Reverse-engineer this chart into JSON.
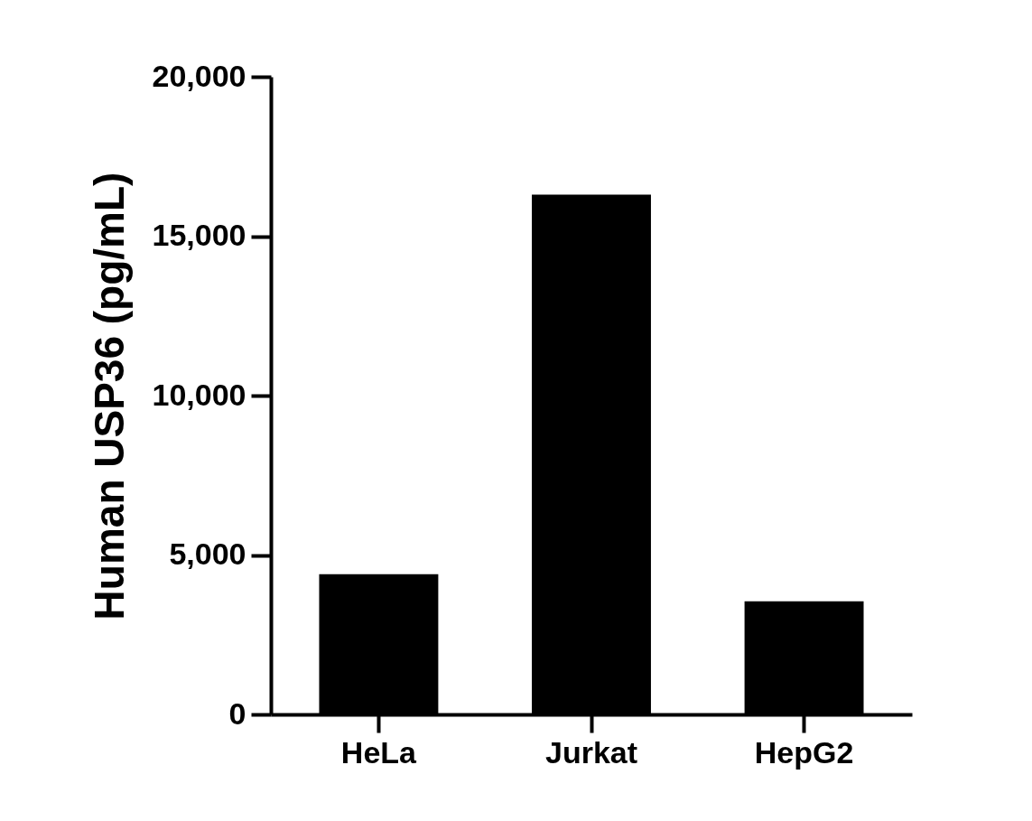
{
  "chart_data": {
    "type": "bar",
    "ylabel": "Human USP36 (pg/mL)",
    "categories": [
      "HeLa",
      "Jurkat",
      "HepG2"
    ],
    "values": [
      4400,
      16300,
      3550
    ],
    "color": "#000000",
    "ylim": [
      0,
      20000
    ],
    "yticks": [
      {
        "value": 0,
        "label": "0"
      },
      {
        "value": 5000,
        "label": "5,000"
      },
      {
        "value": 10000,
        "label": "10,000"
      },
      {
        "value": 15000,
        "label": "15,000"
      },
      {
        "value": 20000,
        "label": "20,000"
      }
    ],
    "grid": false
  }
}
